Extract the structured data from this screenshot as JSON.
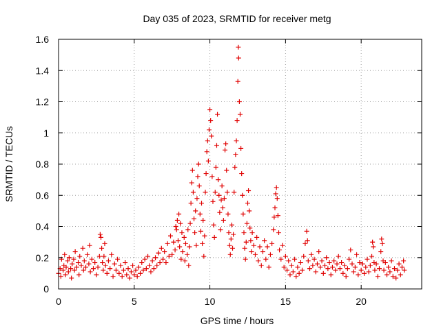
{
  "chart_data": {
    "type": "scatter",
    "title": "Day 035 of 2023, SRMTID for receiver metg",
    "xlabel": "GPS time / hours",
    "ylabel": "SRMTID / TECUs",
    "xlim": [
      0,
      24
    ],
    "ylim": [
      0,
      1.6
    ],
    "x_ticks": [
      0,
      5,
      10,
      15,
      20
    ],
    "x_tick_labels": [
      "0",
      "5",
      "10",
      "15",
      "20"
    ],
    "y_ticks": [
      0,
      0.2,
      0.4,
      0.6,
      0.8,
      1,
      1.2,
      1.4,
      1.6
    ],
    "y_tick_labels": [
      "0",
      "0.2",
      "0.4",
      "0.6",
      "0.8",
      "1",
      "1.2",
      "1.4",
      "1.6"
    ],
    "grid": true,
    "marker": "+",
    "series": [
      {
        "name": "SRMTID",
        "color": "#e00000",
        "points": [
          [
            0.0,
            0.1
          ],
          [
            0.1,
            0.13
          ],
          [
            0.15,
            0.08
          ],
          [
            0.2,
            0.19
          ],
          [
            0.3,
            0.12
          ],
          [
            0.35,
            0.15
          ],
          [
            0.4,
            0.22
          ],
          [
            0.45,
            0.09
          ],
          [
            0.5,
            0.14
          ],
          [
            0.6,
            0.18
          ],
          [
            0.65,
            0.11
          ],
          [
            0.7,
            0.2
          ],
          [
            0.8,
            0.13
          ],
          [
            0.85,
            0.07
          ],
          [
            0.9,
            0.16
          ],
          [
            1.0,
            0.19
          ],
          [
            1.05,
            0.12
          ],
          [
            1.1,
            0.24
          ],
          [
            1.2,
            0.14
          ],
          [
            1.3,
            0.17
          ],
          [
            1.35,
            0.09
          ],
          [
            1.4,
            0.21
          ],
          [
            1.5,
            0.15
          ],
          [
            1.6,
            0.26
          ],
          [
            1.65,
            0.12
          ],
          [
            1.7,
            0.18
          ],
          [
            1.8,
            0.14
          ],
          [
            1.9,
            0.22
          ],
          [
            2.0,
            0.16
          ],
          [
            2.05,
            0.28
          ],
          [
            2.1,
            0.11
          ],
          [
            2.2,
            0.19
          ],
          [
            2.3,
            0.13
          ],
          [
            2.4,
            0.17
          ],
          [
            2.5,
            0.09
          ],
          [
            2.6,
            0.14
          ],
          [
            2.7,
            0.21
          ],
          [
            2.75,
            0.35
          ],
          [
            2.8,
            0.33
          ],
          [
            2.85,
            0.26
          ],
          [
            2.9,
            0.17
          ],
          [
            2.95,
            0.12
          ],
          [
            3.0,
            0.21
          ],
          [
            3.05,
            0.29
          ],
          [
            3.1,
            0.15
          ],
          [
            3.2,
            0.1
          ],
          [
            3.3,
            0.18
          ],
          [
            3.4,
            0.13
          ],
          [
            3.5,
            0.22
          ],
          [
            3.6,
            0.08
          ],
          [
            3.7,
            0.16
          ],
          [
            3.8,
            0.12
          ],
          [
            3.9,
            0.19
          ],
          [
            4.0,
            0.1
          ],
          [
            4.1,
            0.15
          ],
          [
            4.2,
            0.08
          ],
          [
            4.3,
            0.12
          ],
          [
            4.4,
            0.17
          ],
          [
            4.5,
            0.09
          ],
          [
            4.6,
            0.13
          ],
          [
            4.7,
            0.07
          ],
          [
            4.8,
            0.11
          ],
          [
            4.9,
            0.15
          ],
          [
            5.0,
            0.09
          ],
          [
            5.1,
            0.12
          ],
          [
            5.2,
            0.08
          ],
          [
            5.3,
            0.14
          ],
          [
            5.4,
            0.1
          ],
          [
            5.5,
            0.17
          ],
          [
            5.6,
            0.12
          ],
          [
            5.7,
            0.19
          ],
          [
            5.8,
            0.13
          ],
          [
            5.9,
            0.21
          ],
          [
            6.0,
            0.15
          ],
          [
            6.1,
            0.11
          ],
          [
            6.2,
            0.18
          ],
          [
            6.3,
            0.13
          ],
          [
            6.4,
            0.2
          ],
          [
            6.5,
            0.15
          ],
          [
            6.6,
            0.23
          ],
          [
            6.7,
            0.17
          ],
          [
            6.8,
            0.26
          ],
          [
            6.9,
            0.19
          ],
          [
            7.0,
            0.24
          ],
          [
            7.1,
            0.17
          ],
          [
            7.2,
            0.29
          ],
          [
            7.3,
            0.21
          ],
          [
            7.4,
            0.34
          ],
          [
            7.5,
            0.22
          ],
          [
            7.6,
            0.3
          ],
          [
            7.7,
            0.25
          ],
          [
            7.75,
            0.4
          ],
          [
            7.8,
            0.38
          ],
          [
            7.85,
            0.44
          ],
          [
            7.9,
            0.31
          ],
          [
            7.95,
            0.48
          ],
          [
            8.0,
            0.27
          ],
          [
            8.05,
            0.42
          ],
          [
            8.1,
            0.19
          ],
          [
            8.15,
            0.36
          ],
          [
            8.2,
            0.24
          ],
          [
            8.3,
            0.33
          ],
          [
            8.35,
            0.18
          ],
          [
            8.4,
            0.29
          ],
          [
            8.5,
            0.22
          ],
          [
            8.55,
            0.38
          ],
          [
            8.6,
            0.15
          ],
          [
            8.65,
            0.27
          ],
          [
            8.7,
            0.42
          ],
          [
            8.75,
            0.55
          ],
          [
            8.8,
            0.68
          ],
          [
            8.85,
            0.76
          ],
          [
            8.9,
            0.62
          ],
          [
            8.95,
            0.45
          ],
          [
            9.0,
            0.36
          ],
          [
            9.05,
            0.5
          ],
          [
            9.1,
            0.28
          ],
          [
            9.15,
            0.58
          ],
          [
            9.2,
            0.72
          ],
          [
            9.25,
            0.8
          ],
          [
            9.3,
            0.66
          ],
          [
            9.35,
            0.48
          ],
          [
            9.4,
            0.37
          ],
          [
            9.45,
            0.55
          ],
          [
            9.5,
            0.29
          ],
          [
            9.55,
            0.44
          ],
          [
            9.6,
            0.21
          ],
          [
            9.65,
            0.34
          ],
          [
            9.7,
            0.62
          ],
          [
            9.75,
            0.74
          ],
          [
            9.8,
            0.88
          ],
          [
            9.85,
            0.95
          ],
          [
            9.9,
            0.82
          ],
          [
            9.95,
            1.02
          ],
          [
            10.0,
            1.15
          ],
          [
            10.05,
            1.08
          ],
          [
            10.1,
            0.98
          ],
          [
            10.15,
            0.72
          ],
          [
            10.2,
            0.56
          ],
          [
            10.25,
            0.41
          ],
          [
            10.3,
            0.33
          ],
          [
            10.35,
            0.62
          ],
          [
            10.4,
            0.78
          ],
          [
            10.45,
            0.92
          ],
          [
            10.5,
            1.12
          ],
          [
            10.55,
            0.7
          ],
          [
            10.6,
            0.6
          ],
          [
            10.65,
            0.49
          ],
          [
            10.7,
            0.38
          ],
          [
            10.75,
            0.57
          ],
          [
            10.8,
            0.66
          ],
          [
            10.85,
            0.52
          ],
          [
            10.9,
            0.44
          ],
          [
            10.95,
            0.58
          ],
          [
            11.0,
            0.89
          ],
          [
            11.05,
            0.93
          ],
          [
            11.1,
            0.76
          ],
          [
            11.15,
            0.62
          ],
          [
            11.2,
            0.48
          ],
          [
            11.25,
            0.36
          ],
          [
            11.3,
            0.28
          ],
          [
            11.35,
            0.22
          ],
          [
            11.4,
            0.32
          ],
          [
            11.45,
            0.41
          ],
          [
            11.5,
            0.26
          ],
          [
            11.55,
            0.35
          ],
          [
            11.6,
            0.62
          ],
          [
            11.65,
            0.78
          ],
          [
            11.7,
            0.86
          ],
          [
            11.75,
            0.95
          ],
          [
            11.8,
            1.08
          ],
          [
            11.85,
            1.33
          ],
          [
            11.88,
            1.55
          ],
          [
            11.9,
            1.48
          ],
          [
            11.95,
            1.2
          ],
          [
            12.0,
            1.12
          ],
          [
            12.05,
            0.9
          ],
          [
            12.1,
            0.74
          ],
          [
            12.15,
            0.6
          ],
          [
            12.2,
            0.48
          ],
          [
            12.25,
            0.36
          ],
          [
            12.3,
            0.26
          ],
          [
            12.35,
            0.19
          ],
          [
            12.4,
            0.3
          ],
          [
            12.45,
            0.42
          ],
          [
            12.5,
            0.55
          ],
          [
            12.55,
            0.63
          ],
          [
            12.6,
            0.5
          ],
          [
            12.65,
            0.39
          ],
          [
            12.7,
            0.31
          ],
          [
            12.75,
            0.24
          ],
          [
            12.8,
            0.36
          ],
          [
            12.9,
            0.28
          ],
          [
            13.0,
            0.22
          ],
          [
            13.1,
            0.33
          ],
          [
            13.2,
            0.18
          ],
          [
            13.3,
            0.27
          ],
          [
            13.4,
            0.15
          ],
          [
            13.5,
            0.24
          ],
          [
            13.6,
            0.31
          ],
          [
            13.7,
            0.19
          ],
          [
            13.8,
            0.27
          ],
          [
            13.9,
            0.14
          ],
          [
            14.0,
            0.22
          ],
          [
            14.1,
            0.29
          ],
          [
            14.2,
            0.38
          ],
          [
            14.25,
            0.46
          ],
          [
            14.3,
            0.52
          ],
          [
            14.35,
            0.61
          ],
          [
            14.4,
            0.65
          ],
          [
            14.45,
            0.58
          ],
          [
            14.5,
            0.47
          ],
          [
            14.55,
            0.36
          ],
          [
            14.6,
            0.25
          ],
          [
            14.7,
            0.19
          ],
          [
            14.8,
            0.28
          ],
          [
            14.9,
            0.14
          ],
          [
            15.0,
            0.21
          ],
          [
            15.1,
            0.12
          ],
          [
            15.2,
            0.18
          ],
          [
            15.3,
            0.09
          ],
          [
            15.4,
            0.15
          ],
          [
            15.5,
            0.11
          ],
          [
            15.6,
            0.19
          ],
          [
            15.7,
            0.08
          ],
          [
            15.8,
            0.14
          ],
          [
            15.9,
            0.1
          ],
          [
            16.0,
            0.17
          ],
          [
            16.1,
            0.12
          ],
          [
            16.2,
            0.21
          ],
          [
            16.3,
            0.29
          ],
          [
            16.4,
            0.37
          ],
          [
            16.45,
            0.31
          ],
          [
            16.5,
            0.18
          ],
          [
            16.6,
            0.13
          ],
          [
            16.7,
            0.22
          ],
          [
            16.8,
            0.15
          ],
          [
            16.9,
            0.19
          ],
          [
            17.0,
            0.11
          ],
          [
            17.1,
            0.16
          ],
          [
            17.2,
            0.24
          ],
          [
            17.3,
            0.14
          ],
          [
            17.4,
            0.18
          ],
          [
            17.5,
            0.1
          ],
          [
            17.6,
            0.15
          ],
          [
            17.7,
            0.2
          ],
          [
            17.8,
            0.13
          ],
          [
            17.9,
            0.17
          ],
          [
            18.0,
            0.09
          ],
          [
            18.1,
            0.14
          ],
          [
            18.2,
            0.18
          ],
          [
            18.3,
            0.12
          ],
          [
            18.4,
            0.16
          ],
          [
            18.5,
            0.21
          ],
          [
            18.6,
            0.13
          ],
          [
            18.7,
            0.17
          ],
          [
            18.8,
            0.1
          ],
          [
            18.9,
            0.15
          ],
          [
            19.0,
            0.08
          ],
          [
            19.1,
            0.13
          ],
          [
            19.2,
            0.19
          ],
          [
            19.3,
            0.25
          ],
          [
            19.4,
            0.16
          ],
          [
            19.5,
            0.11
          ],
          [
            19.6,
            0.14
          ],
          [
            19.7,
            0.22
          ],
          [
            19.8,
            0.09
          ],
          [
            19.9,
            0.17
          ],
          [
            20.0,
            0.12
          ],
          [
            20.1,
            0.16
          ],
          [
            20.2,
            0.1
          ],
          [
            20.3,
            0.14
          ],
          [
            20.4,
            0.19
          ],
          [
            20.5,
            0.11
          ],
          [
            20.6,
            0.15
          ],
          [
            20.7,
            0.21
          ],
          [
            20.75,
            0.3
          ],
          [
            20.8,
            0.27
          ],
          [
            20.85,
            0.17
          ],
          [
            20.9,
            0.12
          ],
          [
            21.0,
            0.16
          ],
          [
            21.1,
            0.08
          ],
          [
            21.2,
            0.13
          ],
          [
            21.3,
            0.24
          ],
          [
            21.35,
            0.32
          ],
          [
            21.4,
            0.29
          ],
          [
            21.45,
            0.18
          ],
          [
            21.5,
            0.12
          ],
          [
            21.6,
            0.17
          ],
          [
            21.7,
            0.09
          ],
          [
            21.8,
            0.14
          ],
          [
            21.9,
            0.11
          ],
          [
            22.0,
            0.18
          ],
          [
            22.1,
            0.08
          ],
          [
            22.2,
            0.13
          ],
          [
            22.3,
            0.07
          ],
          [
            22.4,
            0.12
          ],
          [
            22.5,
            0.16
          ],
          [
            22.6,
            0.09
          ],
          [
            22.7,
            0.14
          ],
          [
            22.8,
            0.18
          ],
          [
            22.85,
            0.12
          ]
        ]
      }
    ]
  }
}
